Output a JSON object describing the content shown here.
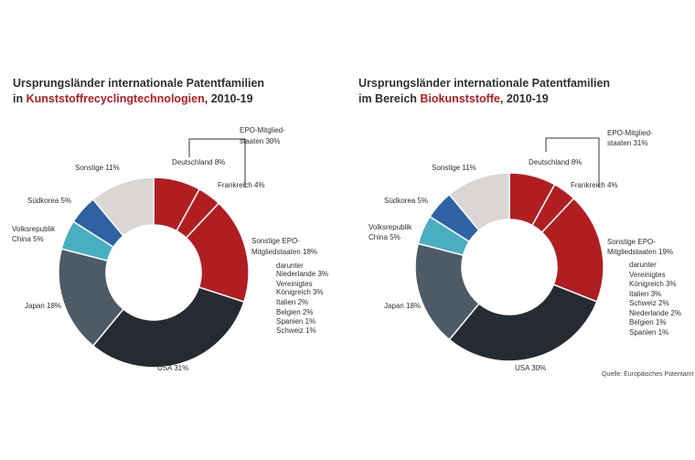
{
  "charts": [
    {
      "title_line1": "Ursprungsländer internationale Patentfamilien",
      "title_prefix": "in ",
      "title_accent": "Kunststoffrecyclingtechnologien",
      "title_suffix": ", 2010-19",
      "epo_label_1": "EPO-Mitglied-",
      "epo_label_2": "staaten 30%",
      "labels": {
        "deutschland": "Deutschland 8%",
        "frankreich": "Frankreich 4%",
        "sonstige_epo_1": "Sonstige EPO-",
        "sonstige_epo_2": "Mitgliedstaaten 18%",
        "usa": "USA 31%",
        "japan": "Japan 18%",
        "china_1": "Volksrepublik",
        "china_2": "China 5%",
        "suedkorea": "Südkorea 5%",
        "sonstige": "Sonstige 11%"
      },
      "darunter": [
        "darunter",
        "Niederlande 3%",
        "Vereinigtes",
        "Königreich  3%",
        "Italien 2%",
        "Belgien 2%",
        "Spanien 1%",
        "Schweiz 1%"
      ]
    },
    {
      "title_line1": "Ursprungsländer internationale Patentfamilien",
      "title_prefix": "im Bereich ",
      "title_accent": "Biokunststoffe",
      "title_suffix": ", 2010-19",
      "epo_label_1": "EPO-Mitglied-",
      "epo_label_2": "staaten 31%",
      "labels": {
        "deutschland": "Deutschland 8%",
        "frankreich": "Frankreich 4%",
        "sonstige_epo_1": "Sonstige EPO-",
        "sonstige_epo_2": "Mitgliedstaaten 19%",
        "usa": "USA 30%",
        "japan": "Japan 18%",
        "china_1": "Volksrepublik",
        "china_2": "China 5%",
        "suedkorea": "Südkorea 5%",
        "sonstige": "Sonstige 11%"
      },
      "darunter": [
        "darunter",
        "Vereinigtes",
        "Königreich 3%",
        "Italien 3%",
        "Schweiz 2%",
        "Niederlande 2%",
        "Belgien 1%",
        "Spanien 1%"
      ]
    }
  ],
  "source": "Quelle: Europäisches Patentamt",
  "colors": {
    "epo": "#b01e22",
    "usa": "#262b33",
    "japan": "#4d5b66",
    "china": "#4aaec3",
    "suedkorea": "#2f62a3",
    "sonstige": "#d9d6d3",
    "accent": "#b01e22"
  },
  "chart_data": [
    {
      "type": "pie",
      "variant": "donut",
      "title": "Ursprungsländer internationale Patentfamilien in Kunststoffrecyclingtechnologien, 2010-19",
      "categories": [
        "Deutschland",
        "Frankreich",
        "Sonstige EPO-Mitgliedstaaten",
        "USA",
        "Japan",
        "Volksrepublik China",
        "Südkorea",
        "Sonstige"
      ],
      "values": [
        8,
        4,
        18,
        31,
        18,
        5,
        5,
        11
      ],
      "group": {
        "name": "EPO-Mitgliedstaaten",
        "value": 30,
        "members": [
          "Deutschland",
          "Frankreich",
          "Sonstige EPO-Mitgliedstaaten"
        ]
      },
      "breakdown": [
        {
          "name": "Niederlande",
          "value": 3
        },
        {
          "name": "Vereinigtes Königreich",
          "value": 3
        },
        {
          "name": "Italien",
          "value": 2
        },
        {
          "name": "Belgien",
          "value": 2
        },
        {
          "name": "Spanien",
          "value": 1
        },
        {
          "name": "Schweiz",
          "value": 1
        }
      ]
    },
    {
      "type": "pie",
      "variant": "donut",
      "title": "Ursprungsländer internationale Patentfamilien im Bereich Biokunststoffe, 2010-19",
      "categories": [
        "Deutschland",
        "Frankreich",
        "Sonstige EPO-Mitgliedstaaten",
        "USA",
        "Japan",
        "Volksrepublik China",
        "Südkorea",
        "Sonstige"
      ],
      "values": [
        8,
        4,
        19,
        30,
        18,
        5,
        5,
        11
      ],
      "group": {
        "name": "EPO-Mitgliedstaaten",
        "value": 31,
        "members": [
          "Deutschland",
          "Frankreich",
          "Sonstige EPO-Mitgliedstaaten"
        ]
      },
      "breakdown": [
        {
          "name": "Vereinigtes Königreich",
          "value": 3
        },
        {
          "name": "Italien",
          "value": 3
        },
        {
          "name": "Schweiz",
          "value": 2
        },
        {
          "name": "Niederlande",
          "value": 2
        },
        {
          "name": "Belgien",
          "value": 1
        },
        {
          "name": "Spanien",
          "value": 1
        }
      ]
    }
  ]
}
